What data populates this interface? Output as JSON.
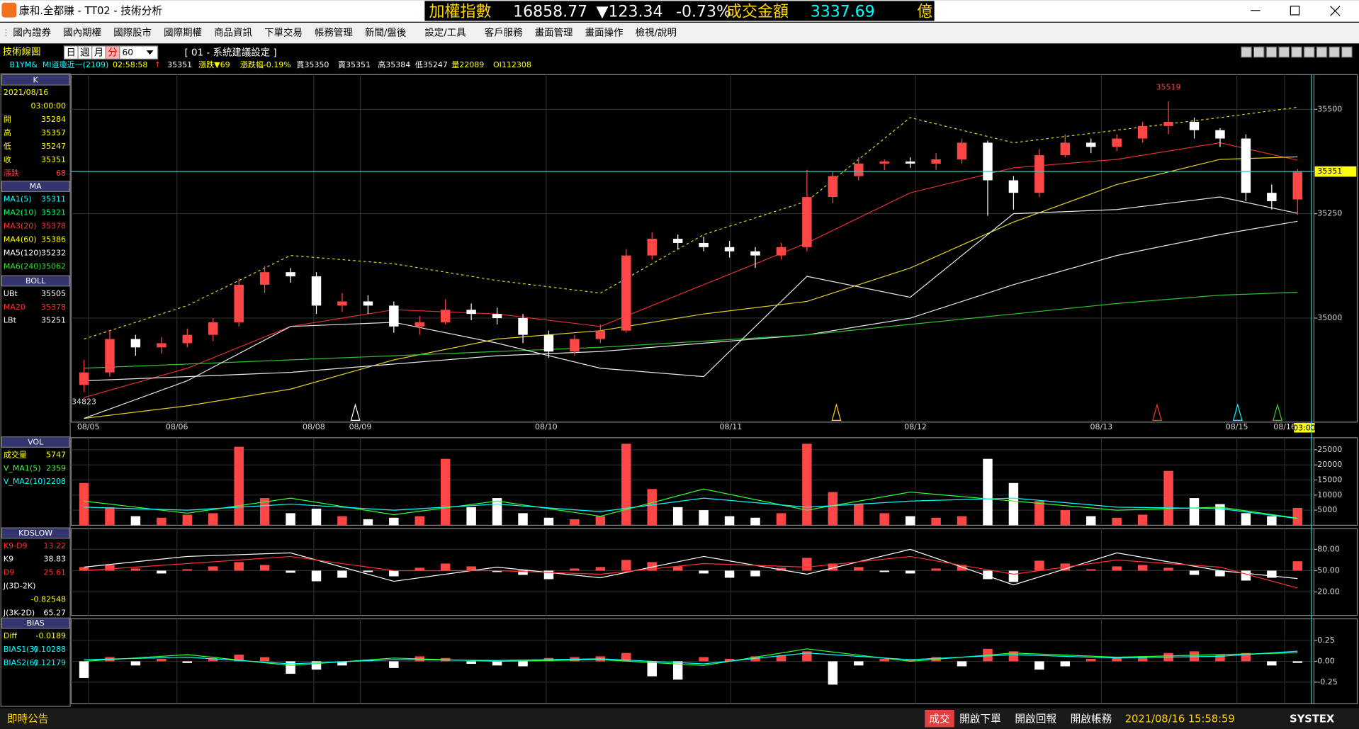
{
  "window": {
    "title": "康和.全都賺 - TT02 - 技術分析",
    "ticker": {
      "index_name": "加權指數",
      "index": "16858.77",
      "change": "▼123.34",
      "pct": "-0.73%",
      "turnover_label": "成交金額",
      "turnover": "3337.69",
      "unit": "億"
    }
  },
  "menu": [
    "國內證券",
    "國內期權",
    "國際股市",
    "國際期權",
    "商品資訊",
    "下單交易",
    "帳務管理",
    "新聞/盤後",
    "設定/工具",
    "客戶服務",
    "畫面管理",
    "畫面操作",
    "檢視/說明"
  ],
  "toolbar": {
    "label": "技術線圖",
    "periods": [
      "日",
      "週",
      "月",
      "分"
    ],
    "interval": "60",
    "setting": "[ 01 - 系統建議設定 ]"
  },
  "quote": {
    "symbol": "B1YM&",
    "name": "MI道瓊近一(2109)",
    "time": "02:58:58",
    "arrow": "↑",
    "last": "35351",
    "change": "漲跌▼69",
    "pct": "漲跌幅-0.19%",
    "bid": "買35350",
    "ask": "賣35351",
    "high": "高35384",
    "low": "低35247",
    "volume": "量22089",
    "oi": "OI112308"
  },
  "side": [
    {
      "header": "K",
      "rows": [
        {
          "label": "2021/08/16",
          "color": "#ffff00"
        },
        {
          "value": "03:00:00",
          "color": "#ffff00"
        },
        {
          "label": "開",
          "value": "35284",
          "color": "#ffff00"
        },
        {
          "label": "高",
          "value": "35357",
          "color": "#ffff00"
        },
        {
          "label": "低",
          "value": "35247",
          "color": "#ffff00"
        },
        {
          "label": "收",
          "value": "35351",
          "color": "#ffff00"
        },
        {
          "label": "漲跌",
          "value": "68",
          "color": "#ff4040"
        }
      ]
    },
    {
      "header": "MA",
      "rows": [
        {
          "label": "MA1(5)",
          "value": "35311",
          "color": "#00ffff"
        },
        {
          "label": "MA2(10)",
          "value": "35321",
          "color": "#00ff66"
        },
        {
          "label": "MA3(20)",
          "value": "35378",
          "color": "#ff3030"
        },
        {
          "label": "MA4(60)",
          "value": "35386",
          "color": "#ffff00"
        },
        {
          "label": "MA5(120)",
          "value": "35232",
          "color": "#ffffff"
        },
        {
          "label": "MA6(240)",
          "value": "35062",
          "color": "#33dd33"
        }
      ]
    },
    {
      "header": "BOLL",
      "rows": [
        {
          "label": "UBt",
          "value": "35505",
          "color": "#ffffff"
        },
        {
          "label": "MA20",
          "value": "35378",
          "color": "#ff3030"
        },
        {
          "label": "LBt",
          "value": "35251",
          "color": "#ffffff"
        }
      ]
    },
    {
      "header": "VOL",
      "rows": [
        {
          "label": "成交量",
          "value": "5747",
          "color": "#ffff00"
        },
        {
          "label": "V_MA1(5)",
          "value": "2359",
          "color": "#33ff33"
        },
        {
          "label": "V_MA2(10)",
          "value": "2208",
          "color": "#00ffff"
        }
      ]
    },
    {
      "header": "KDSLOW",
      "rows": [
        {
          "label": "K9-D9",
          "value": "13.22",
          "color": "#ff3030"
        },
        {
          "label": "K9",
          "value": "38.83",
          "color": "#ffffff"
        },
        {
          "label": "D9",
          "value": "25.61",
          "color": "#ff3030"
        },
        {
          "label": "J(3D-2K)",
          "color": "#ffffff"
        },
        {
          "value": "-0.82548",
          "color": "#ffff00"
        },
        {
          "label": "J(3K-2D)",
          "value": "65.27",
          "color": "#ffffff"
        }
      ]
    },
    {
      "header": "BIAS",
      "rows": [
        {
          "label": "Diff",
          "value": "-0.0189",
          "color": "#ffff00"
        },
        {
          "label": "BIAS1(3)",
          "value": "0.10288",
          "color": "#00ffff"
        },
        {
          "label": "BIAS2(6)",
          "value": "0.12179",
          "color": "#00ffff"
        }
      ]
    }
  ],
  "status": {
    "left": "即時公告",
    "trade": "成交",
    "buttons": [
      "開啟下單",
      "開啟回報",
      "開啟帳務"
    ],
    "time": "2021/08/16 15:58:59",
    "brand": "SYSTEX"
  },
  "chart_data": [
    {
      "type": "candlestick",
      "ylim": [
        34751,
        35583
      ],
      "yticks": [
        35000,
        35250,
        35500
      ],
      "xlim": [
        -0.5,
        47.5
      ],
      "xticks": [
        {
          "value": 0.17,
          "label": "08/05"
        },
        {
          "value": 3.6,
          "label": "08/06"
        },
        {
          "value": 8.9,
          "label": "08/08"
        },
        {
          "value": 10.7,
          "label": "08/09"
        },
        {
          "value": 17.9,
          "label": "08/10"
        },
        {
          "value": 25.05,
          "label": "08/11"
        },
        {
          "value": 32.2,
          "label": "08/12"
        },
        {
          "value": 39.4,
          "label": "08/13"
        },
        {
          "value": 44.65,
          "label": "08/15"
        },
        {
          "value": 46.5,
          "label": "08/16"
        }
      ],
      "last_time": "03:00",
      "up_color": "#ff4646",
      "down_color": "#ffffff",
      "grid": true,
      "candles": [
        {
          "open": 34840,
          "high": 34900,
          "low": 34823,
          "close": 34870
        },
        {
          "open": 34870,
          "high": 34970,
          "low": 34860,
          "close": 34950
        },
        {
          "open": 34950,
          "high": 34960,
          "low": 34910,
          "close": 34930
        },
        {
          "open": 34930,
          "high": 34955,
          "low": 34915,
          "close": 34940
        },
        {
          "open": 34940,
          "high": 34975,
          "low": 34930,
          "close": 34960
        },
        {
          "open": 34960,
          "high": 35000,
          "low": 34945,
          "close": 34990
        },
        {
          "open": 34990,
          "high": 35095,
          "low": 34980,
          "close": 35080
        },
        {
          "open": 35080,
          "high": 35125,
          "low": 35060,
          "close": 35110
        },
        {
          "open": 35110,
          "high": 35120,
          "low": 35085,
          "close": 35100
        },
        {
          "open": 35100,
          "high": 35110,
          "low": 35010,
          "close": 35030
        },
        {
          "open": 35030,
          "high": 35060,
          "low": 35015,
          "close": 35040
        },
        {
          "open": 35040,
          "high": 35055,
          "low": 35010,
          "close": 35030
        },
        {
          "open": 35030,
          "high": 35040,
          "low": 34965,
          "close": 34980
        },
        {
          "open": 34980,
          "high": 35005,
          "low": 34960,
          "close": 34990
        },
        {
          "open": 34990,
          "high": 35045,
          "low": 34985,
          "close": 35020
        },
        {
          "open": 35020,
          "high": 35035,
          "low": 34995,
          "close": 35010
        },
        {
          "open": 35010,
          "high": 35025,
          "low": 34985,
          "close": 35000
        },
        {
          "open": 35000,
          "high": 35010,
          "low": 34940,
          "close": 34960
        },
        {
          "open": 34960,
          "high": 34970,
          "low": 34905,
          "close": 34920
        },
        {
          "open": 34920,
          "high": 34960,
          "low": 34910,
          "close": 34950
        },
        {
          "open": 34950,
          "high": 34985,
          "low": 34940,
          "close": 34970
        },
        {
          "open": 34970,
          "high": 35165,
          "low": 34965,
          "close": 35150
        },
        {
          "open": 35150,
          "high": 35205,
          "low": 35140,
          "close": 35190
        },
        {
          "open": 35190,
          "high": 35200,
          "low": 35165,
          "close": 35180
        },
        {
          "open": 35180,
          "high": 35195,
          "low": 35160,
          "close": 35170
        },
        {
          "open": 35170,
          "high": 35185,
          "low": 35145,
          "close": 35160
        },
        {
          "open": 35160,
          "high": 35170,
          "low": 35120,
          "close": 35150
        },
        {
          "open": 35150,
          "high": 35180,
          "low": 35140,
          "close": 35170
        },
        {
          "open": 35170,
          "high": 35355,
          "low": 35160,
          "close": 35290
        },
        {
          "open": 35290,
          "high": 35350,
          "low": 35275,
          "close": 35340
        },
        {
          "open": 35340,
          "high": 35385,
          "low": 35330,
          "close": 35370
        },
        {
          "open": 35370,
          "high": 35380,
          "low": 35355,
          "close": 35375
        },
        {
          "open": 35375,
          "high": 35385,
          "low": 35360,
          "close": 35370
        },
        {
          "open": 35370,
          "high": 35395,
          "low": 35355,
          "close": 35380
        },
        {
          "open": 35380,
          "high": 35430,
          "low": 35370,
          "close": 35420
        },
        {
          "open": 35420,
          "high": 35425,
          "low": 35245,
          "close": 35330
        },
        {
          "open": 35330,
          "high": 35340,
          "low": 35260,
          "close": 35300
        },
        {
          "open": 35300,
          "high": 35405,
          "low": 35290,
          "close": 35390
        },
        {
          "open": 35390,
          "high": 35440,
          "low": 35385,
          "close": 35420
        },
        {
          "open": 35420,
          "high": 35430,
          "low": 35395,
          "close": 35410
        },
        {
          "open": 35410,
          "high": 35440,
          "low": 35400,
          "close": 35430
        },
        {
          "open": 35430,
          "high": 35470,
          "low": 35420,
          "close": 35460
        },
        {
          "open": 35460,
          "high": 35519,
          "low": 35440,
          "close": 35470
        },
        {
          "open": 35470,
          "high": 35480,
          "low": 35430,
          "close": 35450
        },
        {
          "open": 35450,
          "high": 35455,
          "low": 35410,
          "close": 35430
        },
        {
          "open": 35430,
          "high": 35440,
          "low": 35280,
          "close": 35300
        },
        {
          "open": 35300,
          "high": 35320,
          "low": 35260,
          "close": 35280
        },
        {
          "open": 35284,
          "high": 35357,
          "low": 35247,
          "close": 35351
        }
      ],
      "line_x": [
        0,
        4,
        8,
        12,
        16,
        20,
        24,
        28,
        32,
        36,
        40,
        44,
        47
      ],
      "lines": [
        {
          "color": "#e03030",
          "values": [
            34810,
            34880,
            34980,
            35020,
            35010,
            34980,
            35080,
            35180,
            35300,
            35360,
            35380,
            35420,
            35378
          ]
        },
        {
          "color": "#e0d020",
          "values": [
            34760,
            34790,
            34830,
            34900,
            34950,
            34970,
            35010,
            35040,
            35120,
            35230,
            35320,
            35380,
            35386
          ]
        },
        {
          "color": "#e8e8e8",
          "values": [
            34850,
            34860,
            34870,
            34890,
            34910,
            34920,
            34940,
            34960,
            35000,
            35080,
            35150,
            35200,
            35232
          ]
        },
        {
          "color": "#30c030",
          "values": [
            34880,
            34890,
            34900,
            34910,
            34920,
            34930,
            34945,
            34960,
            34985,
            35010,
            35035,
            35055,
            35062
          ]
        },
        {
          "color": "#e0d020",
          "dash": true,
          "values": [
            34950,
            35030,
            35150,
            35130,
            35090,
            35060,
            35200,
            35280,
            35480,
            35420,
            35450,
            35480,
            35505
          ]
        },
        {
          "color": "#e8e8e8",
          "values": [
            34760,
            34850,
            34980,
            34990,
            34940,
            34880,
            34860,
            35100,
            35050,
            35250,
            35260,
            35290,
            35251
          ]
        }
      ]
    },
    {
      "type": "bar",
      "ylim": [
        0,
        29000
      ],
      "yticks": [
        5000,
        10000,
        15000,
        20000,
        25000
      ],
      "values": [
        14000,
        6000,
        3000,
        2500,
        3500,
        4000,
        26000,
        9000,
        4000,
        5500,
        3000,
        2000,
        2500,
        3000,
        22000,
        6000,
        9000,
        4000,
        2500,
        2000,
        3000,
        27000,
        12000,
        6000,
        5000,
        3000,
        2500,
        4000,
        27000,
        11000,
        7000,
        4000,
        3000,
        2500,
        3000,
        22000,
        14000,
        8000,
        5000,
        3000,
        2500,
        3500,
        18000,
        9000,
        7000,
        4000,
        3000,
        5747
      ],
      "lines": [
        {
          "color": "#33ff33",
          "values": [
            8000,
            4000,
            9000,
            3500,
            8000,
            3000,
            12000,
            5000,
            11000,
            8000,
            5000,
            6000,
            2359
          ]
        },
        {
          "color": "#00ffff",
          "values": [
            6000,
            5000,
            7000,
            5000,
            7000,
            4500,
            9000,
            6000,
            8000,
            9000,
            6000,
            5500,
            2208
          ]
        }
      ]
    },
    {
      "type": "line",
      "ylim": [
        -13,
        109
      ],
      "yticks": [
        {
          "value": 20,
          "label": "20.00"
        },
        {
          "value": 50,
          "label": "50.00"
        },
        {
          "value": 80,
          "label": "80.00"
        }
      ],
      "bar_base": 50,
      "bars": [
        5,
        8,
        3,
        -4,
        2,
        6,
        12,
        8,
        -3,
        -15,
        -10,
        -2,
        -8,
        4,
        10,
        6,
        -2,
        -6,
        -12,
        3,
        5,
        15,
        12,
        6,
        -4,
        -10,
        -8,
        4,
        18,
        10,
        5,
        -2,
        -4,
        3,
        8,
        -12,
        -16,
        14,
        10,
        2,
        6,
        8,
        4,
        -6,
        -8,
        -14,
        -10,
        13.22
      ],
      "lines": [
        {
          "color": "#ffffff",
          "values": [
            55,
            70,
            75,
            35,
            55,
            40,
            70,
            45,
            80,
            30,
            75,
            50,
            38.83
          ]
        },
        {
          "color": "#ff3030",
          "values": [
            50,
            60,
            70,
            50,
            50,
            45,
            60,
            55,
            70,
            45,
            65,
            55,
            25.61
          ]
        }
      ]
    },
    {
      "type": "line",
      "ylim": [
        -0.51,
        0.51
      ],
      "yticks": [
        -0.25,
        {
          "value": 0,
          "label": "0.00"
        },
        0.25
      ],
      "bar_base": 0,
      "bars": [
        -0.2,
        0.05,
        -0.05,
        0.03,
        -0.02,
        0.04,
        0.08,
        0.05,
        -0.15,
        -0.1,
        -0.05,
        0.02,
        -0.08,
        0.06,
        0.04,
        -0.03,
        -0.05,
        -0.06,
        0.04,
        0.05,
        0.06,
        0.1,
        -0.18,
        -0.22,
        0.05,
        0.03,
        0.06,
        0.07,
        0.12,
        -0.28,
        -0.05,
        0.03,
        0.02,
        0.05,
        -0.06,
        0.15,
        0.12,
        -0.1,
        -0.06,
        0.03,
        0.05,
        0.06,
        0.1,
        0.12,
        0.08,
        0.1,
        -0.05,
        -0.0189
      ],
      "lines": [
        {
          "color": "#33ff33",
          "values": [
            0.0,
            0.08,
            -0.05,
            0.04,
            0.0,
            0.02,
            -0.05,
            0.15,
            0.0,
            0.1,
            0.05,
            0.08,
            0.10288
          ]
        },
        {
          "color": "#00ffff",
          "values": [
            0.02,
            0.05,
            -0.03,
            0.02,
            0.01,
            0.03,
            -0.03,
            0.1,
            0.02,
            0.08,
            0.04,
            0.06,
            0.12179
          ]
        }
      ]
    }
  ]
}
